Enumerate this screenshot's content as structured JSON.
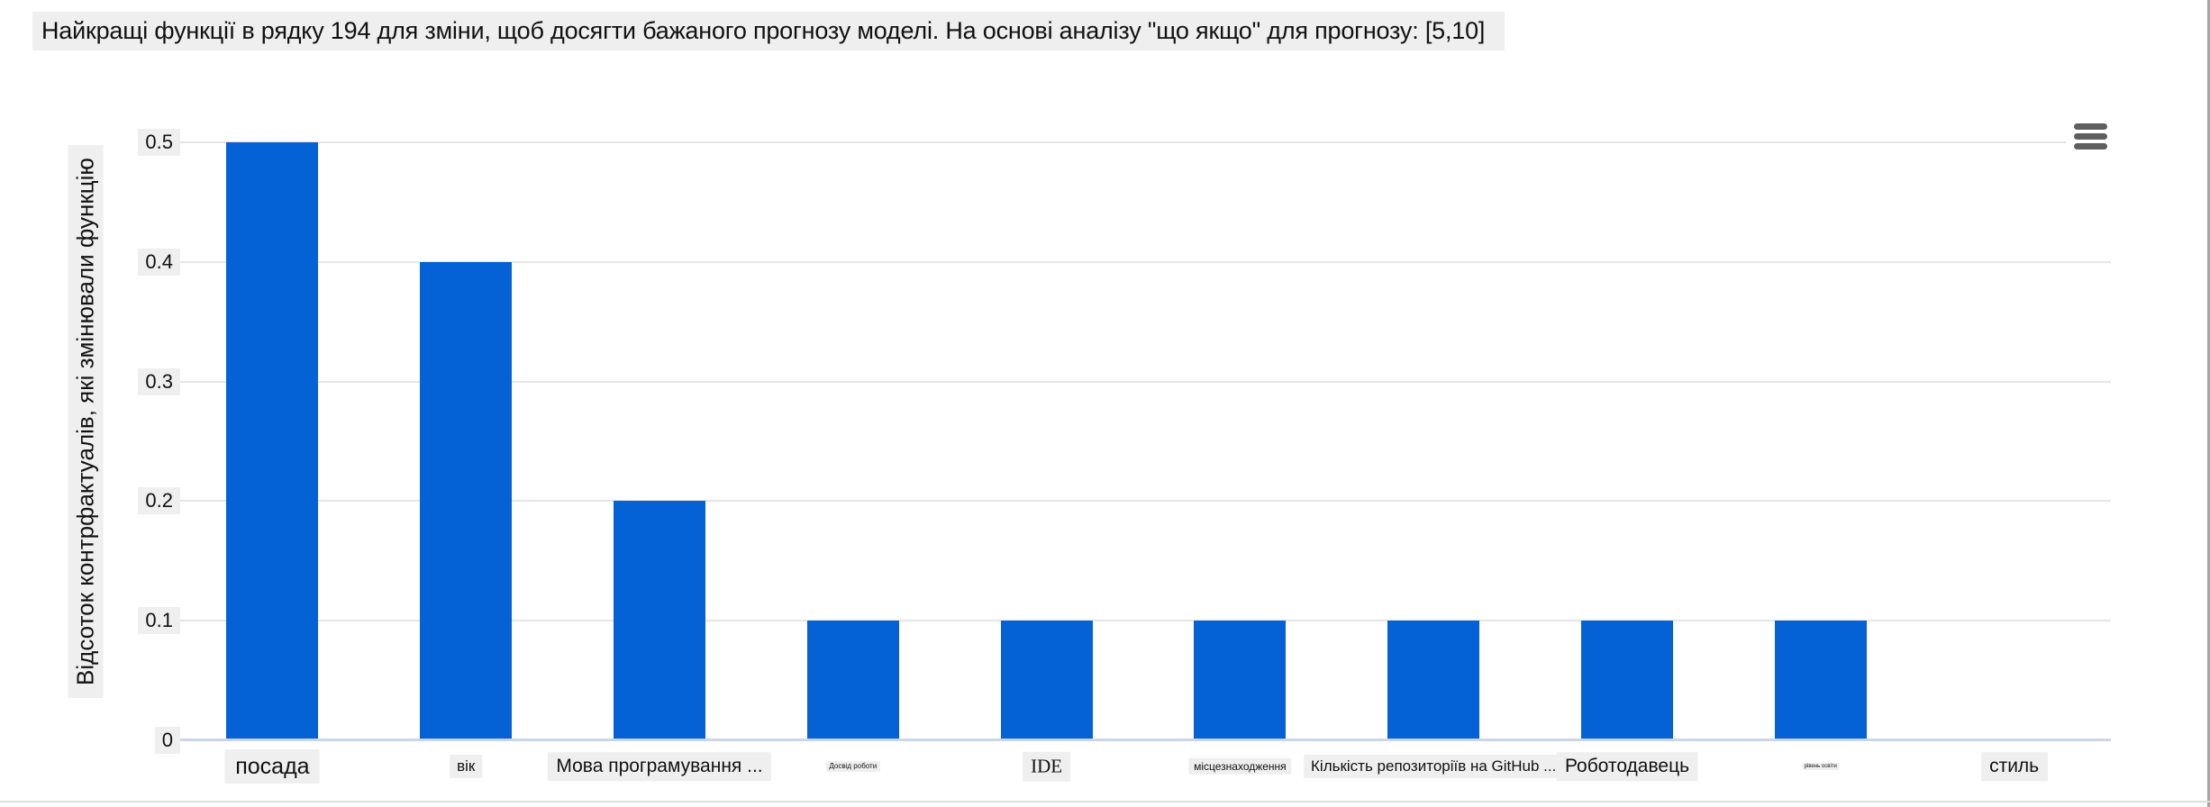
{
  "window": {
    "background": "#ffffff",
    "right_border_color": "#a6a6a6",
    "bottom_border_color": "#dcdcdc"
  },
  "toolbar": {
    "menu_icon": "hamburger-menu"
  },
  "chart_data": {
    "type": "bar",
    "title": "Найкращі функції в рядку 194 для зміни, щоб досягти бажаного прогнозу моделі. На основі аналізу \"що якщо\" для прогнозу: [5,10]",
    "xlabel": "",
    "ylabel": "Відсоток контрфактуалів, які змінювали функцію",
    "categories": [
      "посада",
      "вік",
      "Мова програмування ...",
      "Досвід роботи",
      "IDE",
      "місцезнаходження",
      "Кількість репозиторіїв на GitHub ...",
      "Роботодавець",
      "рівень освіти",
      "стиль"
    ],
    "values": [
      0.5,
      0.4,
      0.2,
      0.1,
      0.1,
      0.1,
      0.1,
      0.1,
      0.1,
      0
    ],
    "category_label_styles": [
      "lg",
      "sm",
      "md",
      "xxs",
      "md serif",
      "xs",
      "sm",
      "md",
      "xxxs",
      "md"
    ],
    "ylim": [
      0,
      0.5
    ],
    "yticks": [
      0,
      0.1,
      0.2,
      0.3,
      0.4,
      0.5
    ],
    "ytick_labels": [
      "0",
      "0.1",
      "0.2",
      "0.3",
      "0.4",
      "0.5"
    ],
    "grid": true,
    "legend": false,
    "bar_color": "#0561d6",
    "gridline_color": "#e6e6e6",
    "axis_line_color": "#ccd6eb",
    "text_background_color": "#efefef"
  }
}
